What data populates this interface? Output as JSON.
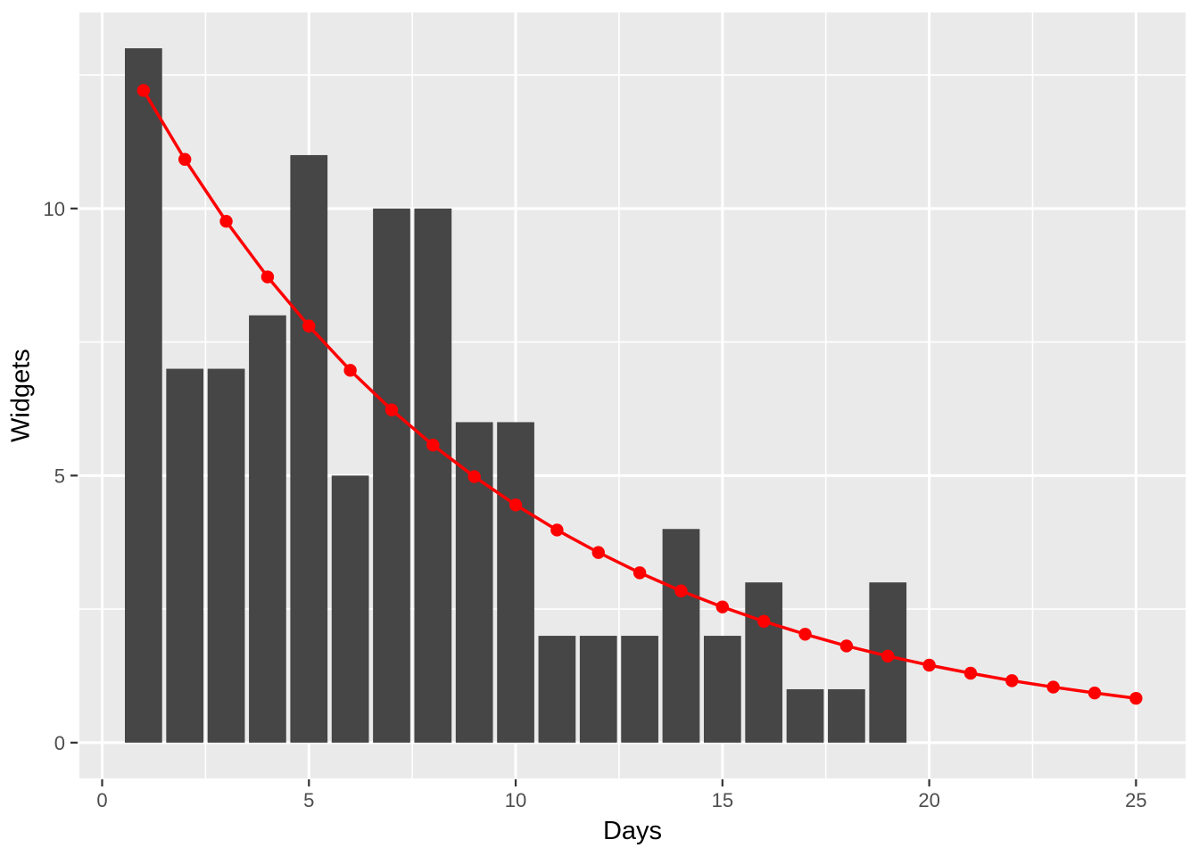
{
  "chart_data": {
    "type": "bar+line",
    "title": "",
    "xlabel": "Days",
    "ylabel": "Widgets",
    "x_ticks": [
      0,
      5,
      10,
      15,
      20,
      25
    ],
    "y_ticks": [
      0,
      5,
      10
    ],
    "x_minor_gridlines": [
      2.5,
      7.5,
      12.5,
      17.5,
      22.5
    ],
    "y_minor_gridlines": [
      2.5,
      7.5,
      12.5
    ],
    "xlim": [
      -0.55,
      26.2
    ],
    "ylim": [
      -0.67,
      13.67
    ],
    "grid": "white major and minor gridlines on gray panel",
    "legend_position": "none",
    "bars": {
      "name": "widgets-histogram",
      "bar_width": 0.9,
      "fill": "#464646",
      "x": [
        1,
        2,
        3,
        4,
        5,
        6,
        7,
        8,
        9,
        10,
        11,
        12,
        13,
        14,
        15,
        16,
        17,
        18,
        19
      ],
      "values": [
        13,
        7,
        7,
        8,
        11,
        5,
        10,
        10,
        6,
        6,
        2,
        2,
        2,
        4,
        2,
        3,
        1,
        1,
        3
      ]
    },
    "line": {
      "name": "exponential-decay-curve",
      "color": "#FF0000",
      "stroke_width": 3.5,
      "point_radius": 7.2,
      "x": [
        1,
        2,
        3,
        4,
        5,
        6,
        7,
        8,
        9,
        10,
        11,
        12,
        13,
        14,
        15,
        16,
        17,
        18,
        19,
        20,
        21,
        22,
        23,
        24,
        25
      ],
      "values": [
        12.21,
        10.92,
        9.76,
        8.72,
        7.8,
        6.97,
        6.23,
        5.57,
        4.98,
        4.45,
        3.98,
        3.56,
        3.18,
        2.84,
        2.54,
        2.27,
        2.03,
        1.81,
        1.62,
        1.45,
        1.3,
        1.16,
        1.04,
        0.93,
        0.83
      ]
    },
    "colors": {
      "panel_bg": "#EAEAEA",
      "gridline": "#FFFFFF",
      "tick_mark": "#333333",
      "tick_label": "#4D4D4D",
      "axis_title": "#000000",
      "outer_bg": "#FFFFFF"
    }
  }
}
